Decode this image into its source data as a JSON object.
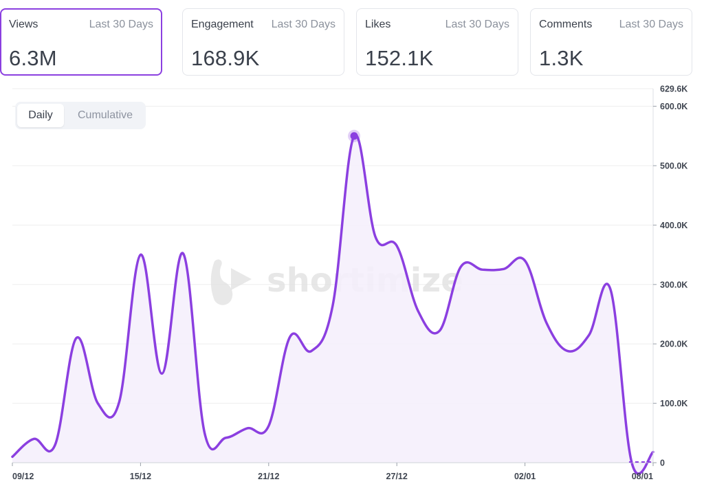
{
  "stats": [
    {
      "label": "Views",
      "period": "Last 30 Days",
      "value": "6.3M",
      "active": true
    },
    {
      "label": "Engagement",
      "period": "Last 30 Days",
      "value": "168.9K",
      "active": false
    },
    {
      "label": "Likes",
      "period": "Last 30 Days",
      "value": "152.1K",
      "active": false
    },
    {
      "label": "Comments",
      "period": "Last 30 Days",
      "value": "1.3K",
      "active": false
    }
  ],
  "toggle": {
    "daily": "Daily",
    "cumulative": "Cumulative"
  },
  "watermark": "shortimize",
  "colors": {
    "line": "#8b3fe0",
    "area": "#f4eefc",
    "marker": "#8b3fe0",
    "grid": "#eeeeee"
  },
  "chart_data": {
    "type": "area",
    "title": "",
    "xlabel": "",
    "ylabel": "",
    "x": [
      "09/12",
      "10/12",
      "11/12",
      "12/12",
      "13/12",
      "14/12",
      "15/12",
      "16/12",
      "17/12",
      "18/12",
      "19/12",
      "20/12",
      "21/12",
      "22/12",
      "23/12",
      "24/12",
      "25/12",
      "26/12",
      "27/12",
      "28/12",
      "29/12",
      "30/12",
      "31/12",
      "01/01",
      "02/01",
      "03/01",
      "04/01",
      "05/01",
      "06/01",
      "07/01",
      "08/01"
    ],
    "x_tick_labels": [
      "09/12",
      "15/12",
      "21/12",
      "27/12",
      "02/01",
      "08/01"
    ],
    "series": [
      {
        "values": [
          10000,
          40000,
          30000,
          210000,
          100000,
          102000,
          350000,
          150000,
          352000,
          50000,
          42000,
          58000,
          62000,
          212000,
          188000,
          265000,
          550000,
          380000,
          365000,
          255000,
          222000,
          330000,
          325000,
          326000,
          340000,
          236000,
          188000,
          215000,
          292000,
          0,
          18000
        ]
      }
    ],
    "highlight_point": {
      "x": "25/12",
      "y": 550000
    },
    "y_ticks": [
      0,
      100000,
      200000,
      300000,
      400000,
      500000,
      600000
    ],
    "y_tick_labels": [
      "0",
      "100.0K",
      "200.0K",
      "300.0K",
      "400.0K",
      "500.0K",
      "600.0K"
    ],
    "y_max_label": "629.6K",
    "ylim": [
      0,
      629600
    ],
    "grid": true,
    "legend": "none"
  }
}
